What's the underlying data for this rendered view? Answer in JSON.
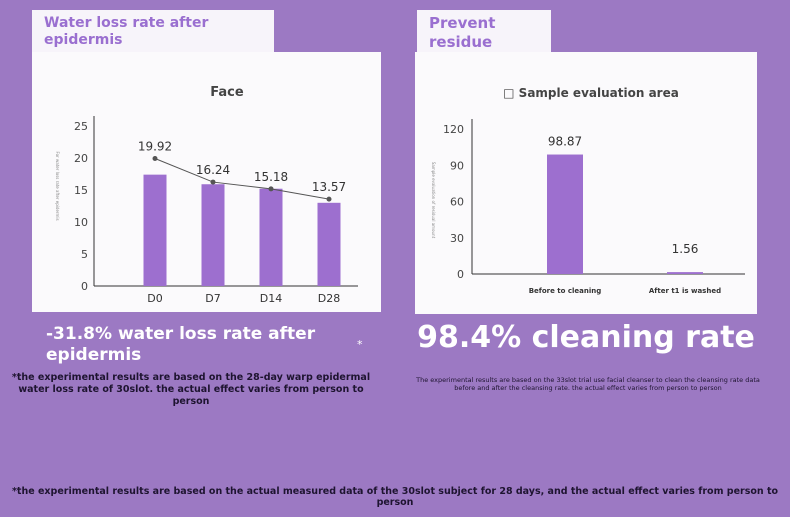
{
  "tabs": {
    "left": "Water loss rate after epidermis",
    "right": "Prevent residue"
  },
  "stats": {
    "left": "-31.8% water loss rate after epidermis",
    "right": "98.4% cleaning rate",
    "star": "*"
  },
  "notes": {
    "left": "*the experimental results are based on the 28-day warp epidermal water loss rate of 30slot. the actual effect varies from person to person",
    "right": "The experimental results are based on the 33slot trial use facial cleanser to clean the cleansing rate data before and after the cleansing rate. the actual effect varies from person to person",
    "footer": "*the experimental results are based on the actual measured data of the 30slot subject for 28 days, and the actual effect varies from person to person"
  },
  "colors": {
    "bar": "#9d6fcf",
    "line": "#555555",
    "background": "#9c79c3",
    "tab_text": "#9a6fd0"
  },
  "chart_data": [
    {
      "type": "bar",
      "title": "Face",
      "ylabel": "For water loss rate after epidermis",
      "categories": [
        "D0",
        "D7",
        "D14",
        "D28"
      ],
      "values": [
        17.4,
        15.9,
        15.2,
        13.0
      ],
      "line_values": [
        19.92,
        16.24,
        15.18,
        13.57
      ],
      "data_labels": [
        "19.92",
        "16.24",
        "15.18",
        "13.57"
      ],
      "yticks": [
        0,
        5,
        10,
        15,
        20,
        25
      ],
      "ylim": [
        0,
        25
      ],
      "grid": false,
      "legend": "none"
    },
    {
      "type": "bar",
      "title": "□ Sample evaluation area",
      "ylabel": "Sample evaluation of residual amount",
      "categories": [
        "Before to cleaning",
        "After t1 is washed"
      ],
      "values": [
        98.87,
        1.56
      ],
      "data_labels": [
        "98.87",
        "1.56"
      ],
      "yticks": [
        0,
        30,
        60,
        90,
        120
      ],
      "ylim": [
        0,
        120
      ],
      "grid": false,
      "legend": "none"
    }
  ]
}
